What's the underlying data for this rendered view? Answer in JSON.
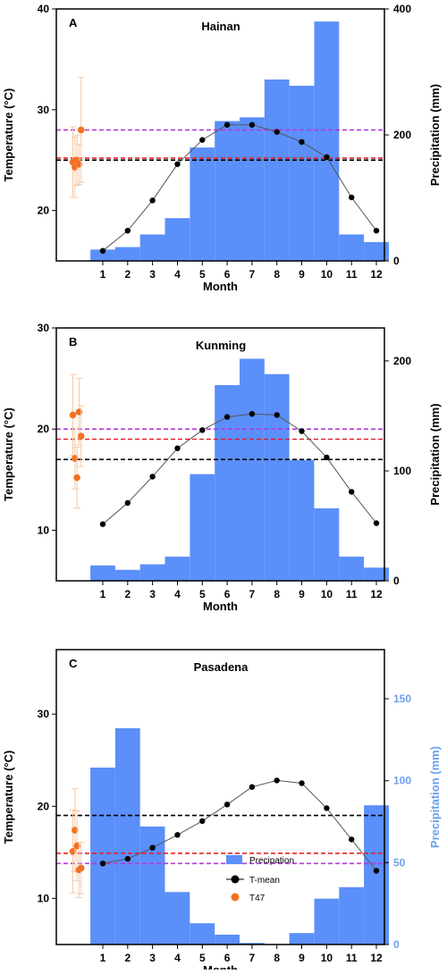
{
  "colors": {
    "precip_bar": "#5b8ff9",
    "t_mean": "#000000",
    "t47": "#f37021",
    "t47_errorbar": "#f5c9a6",
    "line_black": "#000000",
    "line_red": "#e8202a",
    "line_purple": "#b43bd8",
    "precip_axis_c": "#6aa0ef"
  },
  "chart_data": [
    {
      "type": "bar",
      "panel": "A",
      "title": "Hainan",
      "xlabel": "Month",
      "ylabel_left": "Temperature (°C)",
      "ylabel_right": "Precipitation (mm)",
      "x_ticks": [
        "1",
        "2",
        "3",
        "4",
        "5",
        "6",
        "7",
        "8",
        "9",
        "10",
        "11",
        "12"
      ],
      "y_left_ticks": [
        "20",
        "30",
        "40"
      ],
      "y_left_range": [
        15,
        40
      ],
      "y_right_ticks": [
        "0",
        "200",
        "400"
      ],
      "y_right_range": [
        0,
        400
      ],
      "precipitation": [
        18,
        22,
        42,
        68,
        180,
        222,
        228,
        288,
        278,
        380,
        42,
        30
      ],
      "t_mean": [
        16.0,
        18.0,
        21.0,
        24.6,
        27.0,
        28.5,
        28.5,
        27.8,
        26.8,
        25.3,
        21.3,
        18.0
      ],
      "t47": [
        {
          "x": -0.55,
          "y": 24.8,
          "err": 3.5
        },
        {
          "x": -0.4,
          "y": 24.3,
          "err": 3.0
        },
        {
          "x": -0.25,
          "y": 25.0,
          "err": 2.5
        },
        {
          "x": -0.1,
          "y": 24.6,
          "err": 2.0
        },
        {
          "x": 0.05,
          "y": 28.0,
          "err": 5.2
        }
      ],
      "hlines": {
        "black": 25.0,
        "red": 25.2,
        "purple": 28.0
      },
      "grid": false
    },
    {
      "type": "bar",
      "panel": "B",
      "title": "Kunming",
      "xlabel": "Month",
      "ylabel_left": "Temperature (°C)",
      "ylabel_right": "Precipitation (mm)",
      "x_ticks": [
        "1",
        "2",
        "3",
        "4",
        "5",
        "6",
        "7",
        "8",
        "9",
        "10",
        "11",
        "12"
      ],
      "y_left_ticks": [
        "10",
        "20",
        "30"
      ],
      "y_left_range": [
        5,
        30
      ],
      "y_right_ticks": [
        "0",
        "100",
        "200"
      ],
      "y_right_range": [
        0,
        230
      ],
      "precipitation": [
        14,
        10,
        15,
        22,
        97,
        178,
        202,
        188,
        110,
        66,
        22,
        12
      ],
      "t_mean": [
        10.6,
        12.7,
        15.3,
        18.1,
        19.9,
        21.2,
        21.5,
        21.4,
        19.8,
        17.2,
        13.8,
        10.7
      ],
      "t47": [
        {
          "x": -0.55,
          "y": 21.4,
          "err": 4.0
        },
        {
          "x": -0.4,
          "y": 17.1,
          "err": 3.0
        },
        {
          "x": -0.25,
          "y": 15.2,
          "err": 3.0
        },
        {
          "x": -0.1,
          "y": 21.7,
          "err": 3.3
        },
        {
          "x": 0.05,
          "y": 19.3,
          "err": 3.0
        }
      ],
      "hlines": {
        "black": 17.0,
        "red": 19.0,
        "purple": 20.0
      },
      "grid": false
    },
    {
      "type": "bar",
      "panel": "C",
      "title": "Pasadena",
      "xlabel": "Month",
      "ylabel_left": "Temperature (°C)",
      "ylabel_right": "Precipitation (mm)",
      "x_ticks": [
        "1",
        "2",
        "3",
        "4",
        "5",
        "6",
        "7",
        "8",
        "9",
        "10",
        "11",
        "12"
      ],
      "y_left_ticks": [
        "10",
        "20",
        "30"
      ],
      "y_left_range": [
        5,
        37
      ],
      "y_right_ticks": [
        "0",
        "50",
        "100",
        "150"
      ],
      "y_right_range": [
        0,
        180
      ],
      "precipitation": [
        108,
        132,
        72,
        32,
        13,
        6,
        1,
        0,
        7,
        28,
        35,
        85
      ],
      "t_mean": [
        13.8,
        14.3,
        15.5,
        16.9,
        18.4,
        20.2,
        22.1,
        22.8,
        22.5,
        19.8,
        16.4,
        13.0
      ],
      "t47": [
        {
          "x": -0.55,
          "y": 15.1,
          "err": 4.5
        },
        {
          "x": -0.4,
          "y": 17.4,
          "err": 4.5
        },
        {
          "x": -0.25,
          "y": 15.7,
          "err": 3.8
        },
        {
          "x": -0.1,
          "y": 13.1,
          "err": 3.0
        },
        {
          "x": 0.05,
          "y": 13.3,
          "err": 2.8
        }
      ],
      "hlines": {
        "black": 19.0,
        "red": 14.9,
        "purple": 13.8
      },
      "grid": false,
      "legend": {
        "position": "bottom-center",
        "entries": [
          "Precipation",
          "T-mean",
          "T47"
        ]
      }
    }
  ]
}
